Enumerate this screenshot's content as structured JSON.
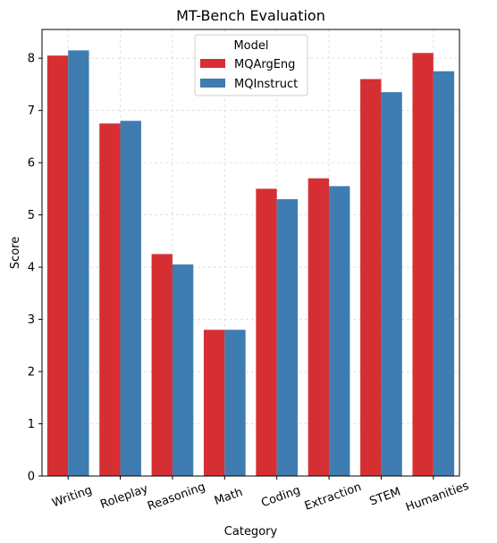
{
  "chart_data": {
    "type": "bar",
    "title": "MT-Bench Evaluation",
    "xlabel": "Category",
    "ylabel": "Score",
    "categories": [
      "Writing",
      "Roleplay",
      "Reasoning",
      "Math",
      "Coding",
      "Extraction",
      "STEM",
      "Humanities"
    ],
    "series": [
      {
        "name": "MQArgEng",
        "color": "#d62f33",
        "values": [
          8.05,
          6.75,
          4.25,
          2.8,
          5.5,
          5.7,
          7.6,
          8.1
        ]
      },
      {
        "name": "MQInstruct",
        "color": "#3f7cb1",
        "values": [
          8.15,
          6.8,
          4.05,
          2.8,
          5.3,
          5.55,
          7.35,
          7.75
        ]
      }
    ],
    "ylim": [
      0,
      8.55
    ],
    "yticks": [
      "0",
      "1",
      "2",
      "3",
      "4",
      "5",
      "6",
      "7",
      "8"
    ],
    "grid": true,
    "legend_title": "Model",
    "legend_position": "top-center"
  }
}
